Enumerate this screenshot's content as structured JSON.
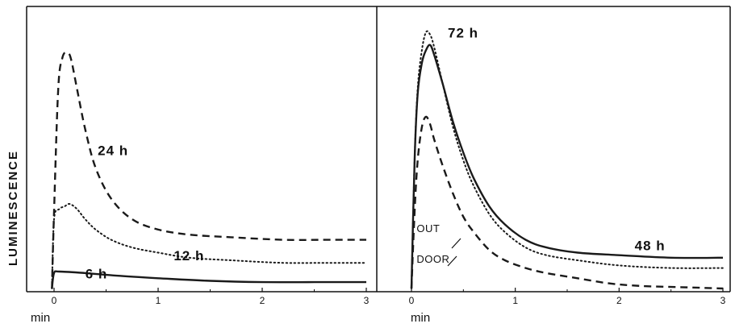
{
  "chart_data": [
    {
      "type": "line",
      "ylabel": "LUMINESCENCE",
      "xlabel": "min",
      "xticks": [
        "0",
        "1",
        "2",
        "3"
      ],
      "xlim": [
        -0.3,
        3.1
      ],
      "ylim": [
        0,
        1
      ],
      "series": [
        {
          "name": "24 h",
          "style": "dashed",
          "color": "#1a1a1a",
          "x": [
            -0.02,
            0.0,
            0.04,
            0.08,
            0.12,
            0.16,
            0.22,
            0.3,
            0.4,
            0.55,
            0.75,
            1.0,
            1.3,
            1.7,
            2.2,
            2.6,
            3.0
          ],
          "y": [
            0.0,
            0.3,
            0.78,
            0.9,
            0.92,
            0.9,
            0.78,
            0.62,
            0.47,
            0.35,
            0.27,
            0.23,
            0.21,
            0.2,
            0.19,
            0.19,
            0.19
          ]
        },
        {
          "name": "12 h",
          "style": "dotted",
          "color": "#1a1a1a",
          "x": [
            -0.02,
            0.0,
            0.05,
            0.1,
            0.15,
            0.22,
            0.3,
            0.4,
            0.55,
            0.75,
            1.0,
            1.3,
            1.7,
            2.2,
            2.6,
            3.0
          ],
          "y": [
            0.0,
            0.27,
            0.31,
            0.32,
            0.33,
            0.31,
            0.27,
            0.23,
            0.19,
            0.16,
            0.14,
            0.12,
            0.11,
            0.1,
            0.1,
            0.1
          ]
        },
        {
          "name": "6 h",
          "style": "solid",
          "color": "#1a1a1a",
          "x": [
            -0.02,
            0.0,
            0.05,
            0.3,
            0.6,
            1.0,
            1.5,
            2.0,
            2.5,
            3.0
          ],
          "y": [
            0.0,
            0.06,
            0.066,
            0.06,
            0.05,
            0.04,
            0.03,
            0.025,
            0.025,
            0.025
          ]
        }
      ],
      "annotations": [
        {
          "text": "24 h",
          "x": 0.42,
          "y": 0.52
        },
        {
          "text": "12 h",
          "x": 1.15,
          "y": 0.11
        },
        {
          "text": "6 h",
          "x": 0.3,
          "y": 0.04
        }
      ]
    },
    {
      "type": "line",
      "xlabel": "min",
      "xticks": [
        "0",
        "1",
        "2",
        "3"
      ],
      "xlim": [
        -0.3,
        3.05
      ],
      "ylim": [
        0,
        1
      ],
      "series": [
        {
          "name": "72 h",
          "style": "dotted",
          "color": "#1a1a1a",
          "x": [
            0.0,
            0.03,
            0.06,
            0.1,
            0.14,
            0.18,
            0.22,
            0.3,
            0.4,
            0.5,
            0.6,
            0.75,
            0.9,
            1.1,
            1.3,
            1.6,
            2.0,
            2.5,
            3.0
          ],
          "y": [
            0.0,
            0.5,
            0.78,
            0.93,
            1.0,
            0.99,
            0.94,
            0.8,
            0.63,
            0.5,
            0.4,
            0.29,
            0.22,
            0.16,
            0.13,
            0.11,
            0.09,
            0.08,
            0.08
          ]
        },
        {
          "name": "48 h",
          "style": "solid",
          "color": "#1a1a1a",
          "x": [
            0.0,
            0.03,
            0.06,
            0.1,
            0.14,
            0.18,
            0.22,
            0.3,
            0.4,
            0.5,
            0.6,
            0.75,
            0.9,
            1.1,
            1.3,
            1.6,
            2.0,
            2.5,
            3.0
          ],
          "y": [
            0.0,
            0.5,
            0.76,
            0.88,
            0.93,
            0.95,
            0.91,
            0.8,
            0.65,
            0.53,
            0.43,
            0.32,
            0.25,
            0.19,
            0.16,
            0.14,
            0.13,
            0.12,
            0.12
          ]
        },
        {
          "name": "OUTDOOR",
          "style": "dashed",
          "color": "#1a1a1a",
          "x": [
            0.0,
            0.03,
            0.06,
            0.1,
            0.14,
            0.18,
            0.22,
            0.3,
            0.4,
            0.5,
            0.6,
            0.75,
            0.9,
            1.1,
            1.3,
            1.6,
            1.9,
            2.2,
            2.6,
            3.0
          ],
          "y": [
            0.0,
            0.3,
            0.5,
            0.63,
            0.67,
            0.64,
            0.58,
            0.48,
            0.37,
            0.28,
            0.22,
            0.15,
            0.11,
            0.08,
            0.06,
            0.04,
            0.02,
            0.01,
            0.005,
            0.0
          ]
        }
      ],
      "annotations": [
        {
          "text": "72 h",
          "x": 0.35,
          "y": 0.98
        },
        {
          "text": "48 h",
          "x": 2.15,
          "y": 0.15
        },
        {
          "text": "OUT",
          "x": 0.05,
          "y": 0.22
        },
        {
          "text": "DOOR",
          "x": 0.05,
          "y": 0.1
        }
      ]
    }
  ]
}
